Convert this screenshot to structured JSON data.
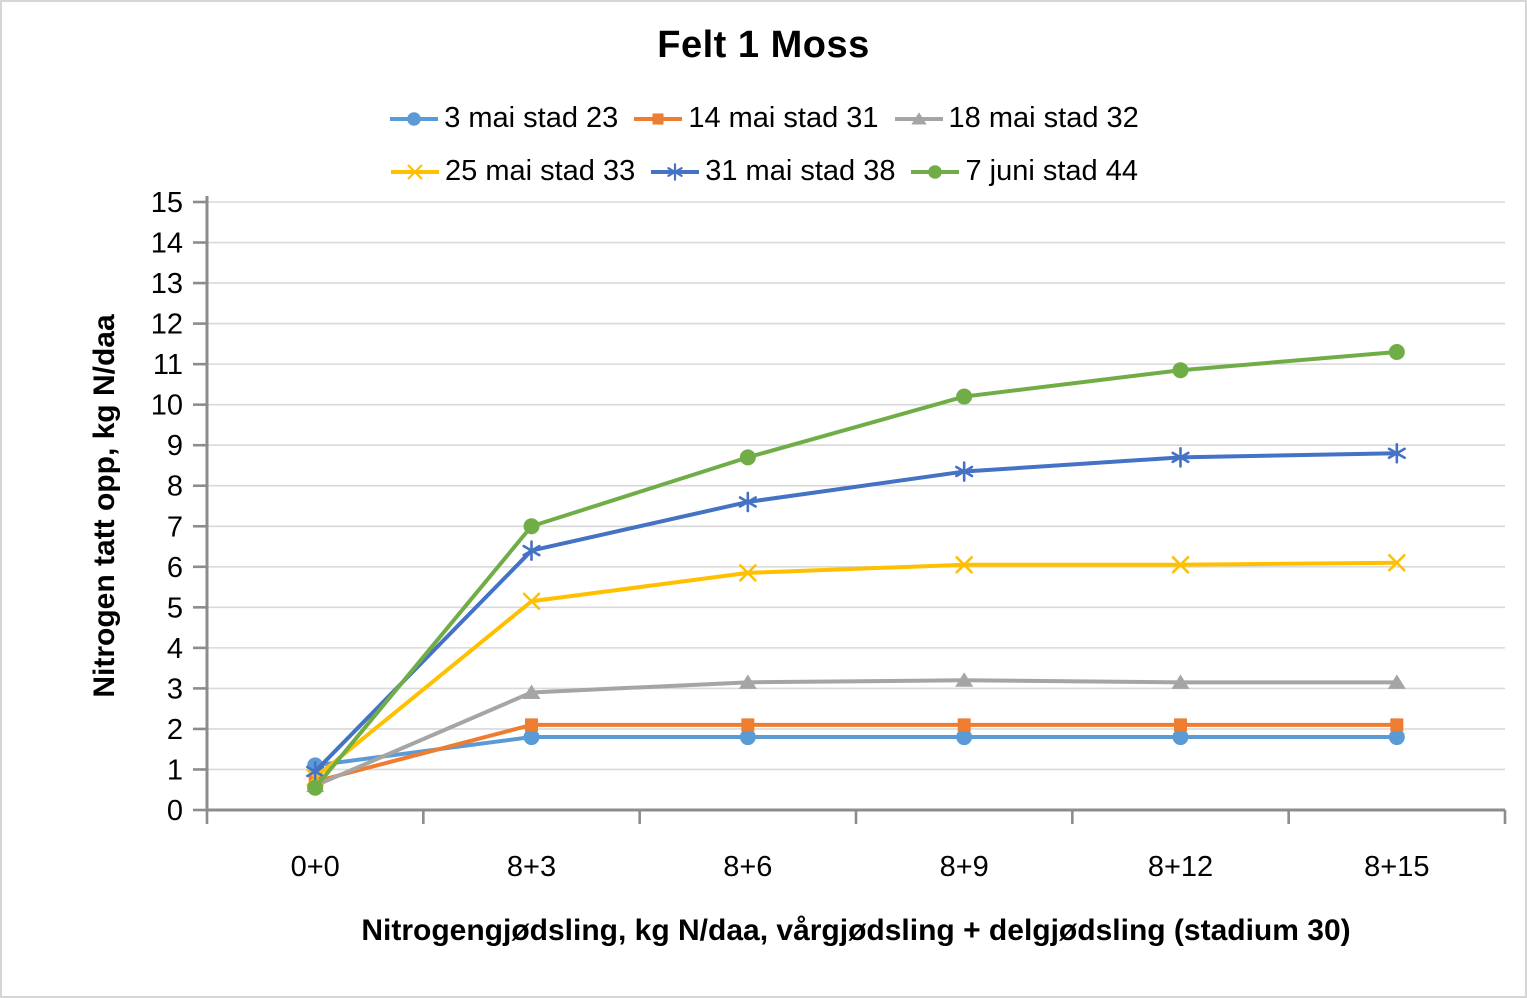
{
  "chart_data": {
    "type": "line",
    "title": "Felt 1 Moss",
    "xlabel": "Nitrogengjødsling, kg N/daa, vårgjødsling + delgjødsling (stadium 30)",
    "ylabel": "Nitrogen tatt opp, kg N/daa",
    "categories": [
      "0+0",
      "8+3",
      "8+6",
      "8+9",
      "8+12",
      "8+15"
    ],
    "series": [
      {
        "name": "3 mai stad 23",
        "color": "#5B9BD5",
        "marker": "circle",
        "values": [
          1.1,
          1.8,
          1.8,
          1.8,
          1.8,
          1.8
        ]
      },
      {
        "name": "14 mai stad 31",
        "color": "#ED7D31",
        "marker": "square",
        "values": [
          0.7,
          2.1,
          2.1,
          2.1,
          2.1,
          2.1
        ]
      },
      {
        "name": "18 mai stad 32",
        "color": "#A5A5A5",
        "marker": "triangle",
        "values": [
          0.6,
          2.9,
          3.15,
          3.2,
          3.15,
          3.15
        ]
      },
      {
        "name": "25 mai stad 33",
        "color": "#FFC000",
        "marker": "x",
        "values": [
          0.8,
          5.15,
          5.85,
          6.05,
          6.05,
          6.1
        ]
      },
      {
        "name": "31 mai stad 38",
        "color": "#4472C4",
        "marker": "asterisk",
        "values": [
          0.95,
          6.4,
          7.6,
          8.35,
          8.7,
          8.8
        ]
      },
      {
        "name": "7 juni stad 44",
        "color": "#70AD47",
        "marker": "circle",
        "values": [
          0.55,
          7.0,
          8.7,
          10.2,
          10.85,
          11.3
        ]
      }
    ],
    "ylim": [
      0,
      15
    ],
    "ytick_step": 1,
    "grid": true,
    "legend_position": "top",
    "legend_items_per_row": 3,
    "colors": {
      "grid": "#D9D9D9",
      "axis": "#8C8C8C",
      "text": "#000000",
      "frame_border": "#D6D6D6",
      "background": "#FFFFFF"
    }
  }
}
